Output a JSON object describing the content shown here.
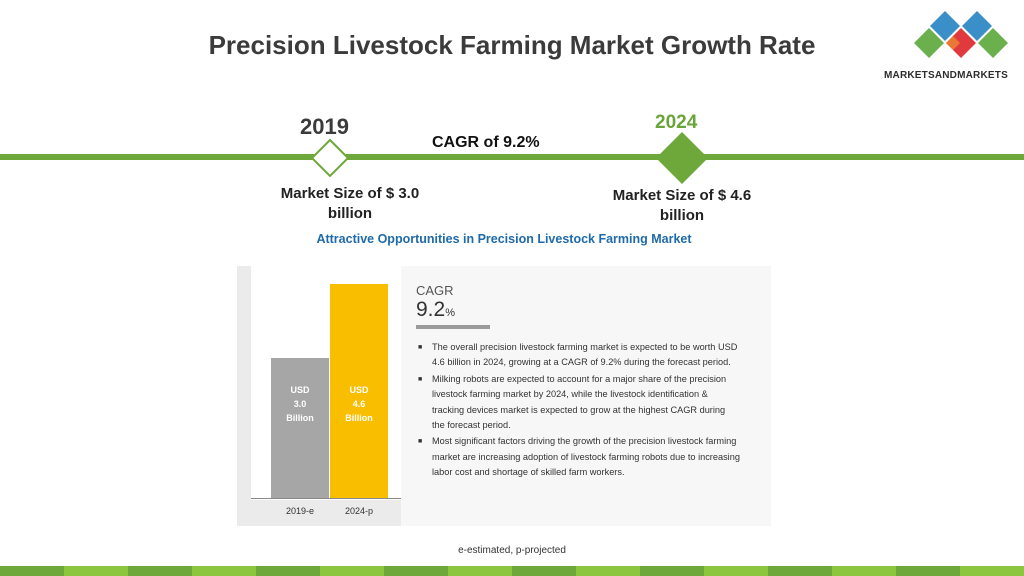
{
  "title": "Precision Livestock Farming Market Growth Rate",
  "logo": {
    "text": "MARKETSANDMARKETS",
    "colors": [
      "#3a8fc9",
      "#6ab04c",
      "#e03a3e",
      "#f4b62b"
    ]
  },
  "timeline": {
    "year_start": "2019",
    "year_end": "2024",
    "cagr": "CAGR of 9.2%",
    "market_start": "Market Size of $ 3.0 billion",
    "market_end": "Market Size of $ 4.6 billion",
    "accent": "#6aa53a"
  },
  "panel": {
    "title": "Attractive Opportunities in Precision Livestock Farming Market",
    "cagr_label": "CAGR",
    "cagr_value": "9.2",
    "cagr_unit": "%",
    "bullets": [
      "The overall precision livestock farming market is expected to be worth USD 4.6 billion in 2024, growing at a CAGR of 9.2% during the forecast period.",
      "Milking robots are expected to account for a major share of the precision livestock farming market by 2024, while the livestock identification & tracking devices market is expected to grow at the highest CAGR during the forecast period.",
      "Most significant factors driving the growth of the precision livestock farming market are increasing adoption of livestock farming robots due to increasing labor cost and shortage of skilled farm workers."
    ]
  },
  "chart_data": {
    "type": "bar",
    "categories": [
      "2019-e",
      "2024-p"
    ],
    "values": [
      3.0,
      4.6
    ],
    "bar_labels": [
      [
        "USD",
        "3.0",
        "Billion"
      ],
      [
        "USD",
        "4.6",
        "Billion"
      ]
    ],
    "colors": [
      "#a6a6a6",
      "#f9be00"
    ]
  },
  "footnote": "e-estimated, p-projected"
}
